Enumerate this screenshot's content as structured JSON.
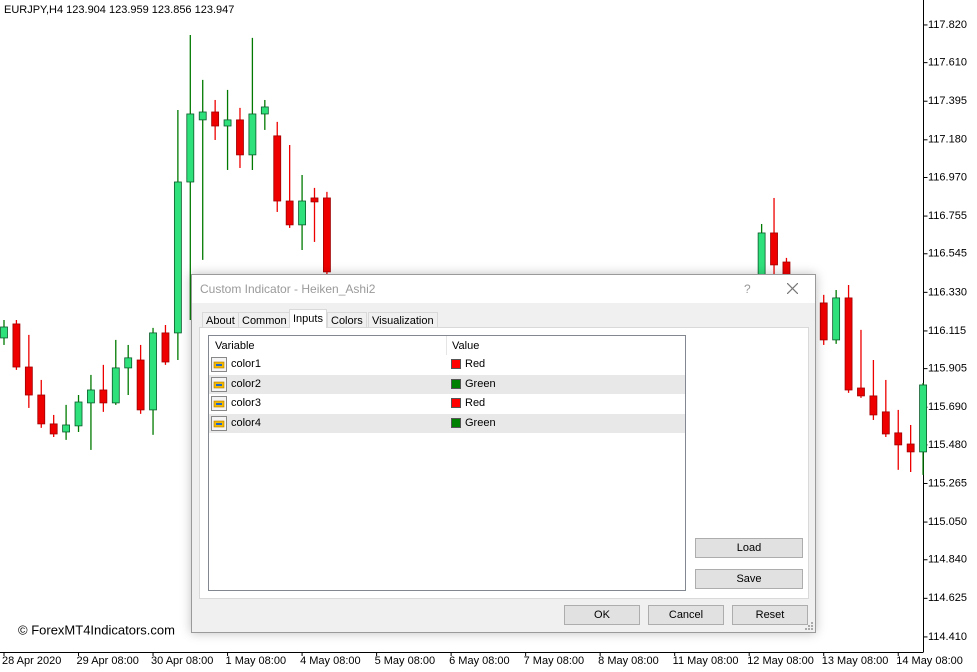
{
  "chart_data": {
    "type": "candlestick",
    "title": "EURJPY,H4  123.904 123.959 123.856 123.947",
    "categories": [
      "28 Apr 2020",
      null,
      null,
      null,
      null,
      null,
      "29 Apr 08:00",
      null,
      null,
      null,
      null,
      null,
      "30 Apr 08:00",
      null,
      null,
      null,
      null,
      null,
      "1 May 08:00",
      null,
      null,
      null,
      null,
      null,
      "4 May 08:00",
      null,
      null,
      null,
      null,
      null,
      "5 May 08:00",
      null,
      null,
      null,
      null,
      null,
      "6 May 08:00",
      null,
      null,
      null,
      null,
      null,
      "7 May 08:00",
      null,
      null,
      null,
      null,
      null,
      "8 May 08:00",
      null,
      null,
      null,
      null,
      null,
      "11 May 08:00",
      null,
      null,
      null,
      null,
      null,
      "12 May 08:00",
      null,
      null,
      null,
      null,
      null,
      "13 May 08:00",
      null,
      null,
      null,
      null,
      null,
      "14 May 08:00",
      null,
      null
    ],
    "open": [
      116.076,
      116.154,
      115.914,
      115.758,
      115.597,
      115.552,
      115.586,
      115.714,
      115.786,
      115.714,
      115.909,
      115.953,
      115.675,
      116.104,
      116.104,
      116.945,
      117.291,
      117.335,
      117.257,
      117.291,
      117.096,
      117.324,
      117.202,
      116.839,
      116.706,
      116.856,
      116.856,
      null,
      null,
      null,
      null,
      null,
      null,
      null,
      null,
      null,
      null,
      null,
      null,
      null,
      null,
      null,
      null,
      null,
      null,
      null,
      null,
      null,
      null,
      null,
      null,
      null,
      null,
      null,
      null,
      null,
      null,
      null,
      null,
      null,
      null,
      116.427,
      116.661,
      116.499,
      null,
      null,
      116.271,
      116.065,
      116.299,
      115.797,
      115.753,
      115.664,
      115.547,
      115.485,
      115.441
    ],
    "high": [
      116.176,
      116.176,
      116.093,
      115.842,
      115.647,
      115.703,
      115.758,
      115.87,
      115.926,
      116.065,
      116.037,
      116.037,
      116.132,
      116.148,
      117.346,
      117.764,
      117.514,
      117.402,
      117.458,
      117.358,
      117.748,
      117.402,
      117.28,
      117.151,
      116.984,
      116.912,
      116.89,
      null,
      null,
      null,
      null,
      null,
      null,
      null,
      null,
      null,
      null,
      null,
      null,
      null,
      null,
      null,
      null,
      null,
      null,
      null,
      null,
      null,
      null,
      null,
      null,
      null,
      null,
      null,
      null,
      null,
      null,
      null,
      null,
      null,
      null,
      116.711,
      116.856,
      116.522,
      null,
      null,
      116.316,
      116.343,
      116.371,
      116.121,
      115.953,
      115.842,
      115.675,
      115.591,
      115.825
    ],
    "low": [
      116.037,
      115.898,
      115.686,
      115.575,
      115.524,
      115.508,
      115.552,
      115.452,
      115.664,
      115.703,
      115.758,
      115.653,
      115.536,
      115.926,
      115.953,
      116.176,
      116.511,
      117.179,
      117.012,
      117.023,
      117.012,
      117.235,
      116.778,
      116.689,
      116.566,
      116.611,
      116.427,
      null,
      null,
      null,
      null,
      null,
      null,
      null,
      null,
      null,
      null,
      null,
      null,
      null,
      null,
      null,
      null,
      null,
      null,
      null,
      null,
      null,
      null,
      null,
      null,
      null,
      null,
      null,
      null,
      null,
      null,
      null,
      null,
      null,
      null,
      116.343,
      116.371,
      116.26,
      null,
      null,
      116.037,
      116.043,
      115.77,
      115.742,
      115.619,
      115.524,
      115.341,
      115.329,
      115.313
    ],
    "close": [
      116.137,
      115.914,
      115.758,
      115.597,
      115.541,
      115.591,
      115.719,
      115.786,
      115.714,
      115.909,
      115.965,
      115.675,
      116.104,
      115.942,
      116.945,
      117.324,
      117.335,
      117.257,
      117.291,
      117.096,
      117.324,
      117.363,
      116.839,
      116.706,
      116.839,
      116.834,
      116.444,
      null,
      null,
      null,
      null,
      null,
      null,
      null,
      null,
      null,
      null,
      null,
      null,
      null,
      null,
      null,
      null,
      null,
      null,
      null,
      null,
      null,
      null,
      null,
      null,
      null,
      null,
      null,
      null,
      null,
      null,
      null,
      null,
      null,
      null,
      116.661,
      116.483,
      116.288,
      null,
      null,
      116.065,
      116.299,
      115.786,
      115.753,
      115.647,
      115.541,
      115.48,
      115.441,
      115.814
    ],
    "up_color": "#2fe17b",
    "up_wick_color": "#007a00",
    "down_color": "#ee0000",
    "down_wick_color": "#ee0000",
    "ylim": [
      114.326,
      117.959
    ],
    "yticks": [
      {
        "value": 117.82,
        "label": "117.820"
      },
      {
        "value": 117.61,
        "label": "117.610"
      },
      117.395,
      {
        "value": 117.18,
        "label": "117.180"
      },
      {
        "value": 116.97,
        "label": "116.970"
      },
      116.755,
      116.545,
      {
        "value": 116.33,
        "label": "116.330"
      },
      116.115,
      115.905,
      {
        "value": 115.69,
        "label": "115.690"
      },
      {
        "value": 115.48,
        "label": "115.480"
      },
      115.265,
      {
        "value": 115.05,
        "label": "115.050"
      },
      {
        "value": 114.84,
        "label": "114.840"
      },
      114.625,
      {
        "value": 114.41,
        "label": "114.410"
      }
    ],
    "watermark": "© ForexMT4Indicators.com"
  },
  "dialog": {
    "title": "Custom Indicator - Heiken_Ashi2",
    "help": "?",
    "tabs": [
      "About",
      "Common",
      "Inputs",
      "Colors",
      "Visualization"
    ],
    "columns": [
      "Variable",
      "Value"
    ],
    "rows": [
      {
        "variable": "color1",
        "value": "Red",
        "swatch": "#ff0000"
      },
      {
        "variable": "color2",
        "value": "Green",
        "swatch": "#008000"
      },
      {
        "variable": "color3",
        "value": "Red",
        "swatch": "#ff0000"
      },
      {
        "variable": "color4",
        "value": "Green",
        "swatch": "#008000"
      }
    ],
    "side_buttons": [
      "Load",
      "Save"
    ],
    "buttons": [
      "OK",
      "Cancel",
      "Reset"
    ]
  }
}
